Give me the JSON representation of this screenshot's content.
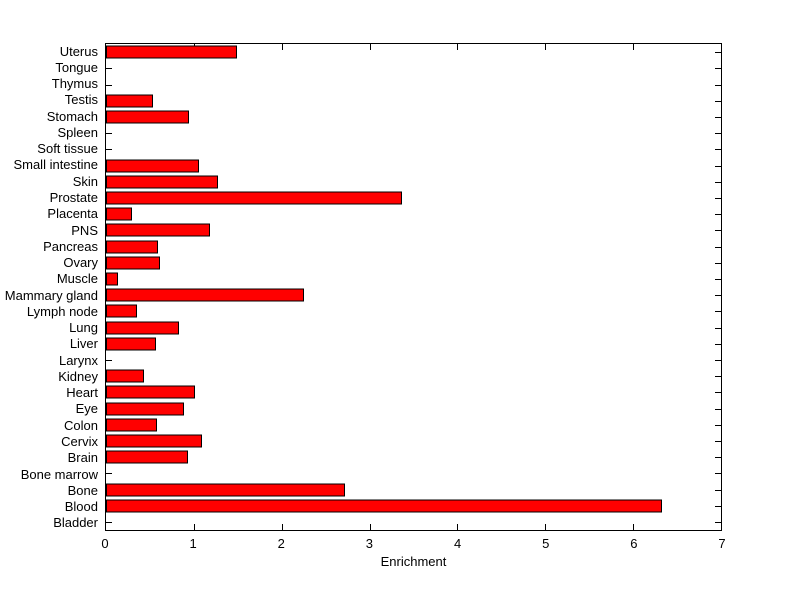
{
  "figure": {
    "background_color": "#FFFFFF",
    "text_color": "#000000"
  },
  "chart_data": {
    "type": "bar",
    "orientation": "horizontal",
    "title": "",
    "xlabel": "Enrichment",
    "ylabel": "",
    "xlim": [
      0,
      7
    ],
    "x_ticks": [
      0,
      1,
      2,
      3,
      4,
      5,
      6,
      7
    ],
    "grid": false,
    "legend": "none",
    "bar_color": "#FF0000",
    "bar_edge_color": "#000000",
    "categories": [
      "Uterus",
      "Tongue",
      "Thymus",
      "Testis",
      "Stomach",
      "Spleen",
      "Soft tissue",
      "Small intestine",
      "Skin",
      "Prostate",
      "Placenta",
      "PNS",
      "Pancreas",
      "Ovary",
      "Muscle",
      "Mammary gland",
      "Lymph node",
      "Lung",
      "Liver",
      "Larynx",
      "Kidney",
      "Heart",
      "Eye",
      "Colon",
      "Cervix",
      "Brain",
      "Bone marrow",
      "Bone",
      "Blood",
      "Bladder"
    ],
    "values": [
      1.49,
      0,
      0,
      0.54,
      0.95,
      0,
      0,
      1.06,
      1.27,
      3.37,
      0.3,
      1.18,
      0.59,
      0.62,
      0.14,
      2.25,
      0.35,
      0.83,
      0.57,
      0,
      0.43,
      1.01,
      0.89,
      0.58,
      1.09,
      0.93,
      0,
      2.72,
      6.33,
      0
    ]
  }
}
